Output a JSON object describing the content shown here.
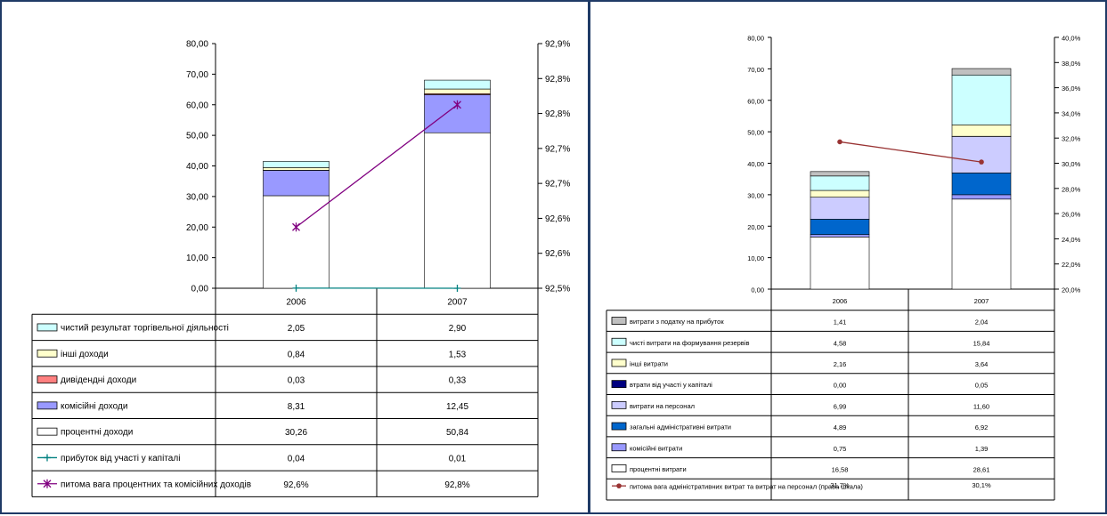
{
  "colors": {
    "border": "#1f3a66"
  },
  "chart_data": [
    {
      "type": "bar",
      "stacked": true,
      "categories": [
        "2006",
        "2007"
      ],
      "ylim": [
        0,
        80
      ],
      "yticks": [
        "0,00",
        "10,00",
        "20,00",
        "30,00",
        "40,00",
        "50,00",
        "60,00",
        "70,00",
        "80,00"
      ],
      "y2ticks": [
        "92,5%",
        "92,6%",
        "92,6%",
        "92,7%",
        "92,7%",
        "92,8%",
        "92,8%",
        "92,9%"
      ],
      "series": [
        {
          "name": "чистий результат торгівельної діяльності",
          "kind": "bar",
          "color": "#ccffff",
          "values": [
            2.05,
            2.9
          ],
          "labels": [
            "2,05",
            "2,90"
          ]
        },
        {
          "name": "інші доходи",
          "kind": "bar",
          "color": "#ffffcc",
          "values": [
            0.84,
            1.53
          ],
          "labels": [
            "0,84",
            "1,53"
          ]
        },
        {
          "name": "дивідендні доходи",
          "kind": "bar",
          "color": "#ff8080",
          "values": [
            0.03,
            0.33
          ],
          "labels": [
            "0,03",
            "0,33"
          ]
        },
        {
          "name": "комісійні доходи",
          "kind": "bar",
          "color": "#9999ff",
          "values": [
            8.31,
            12.45
          ],
          "labels": [
            "8,31",
            "12,45"
          ]
        },
        {
          "name": "процентні доходи",
          "kind": "bar",
          "color": "#ffffff",
          "values": [
            30.26,
            50.84
          ],
          "labels": [
            "30,26",
            "50,84"
          ]
        },
        {
          "name": "прибуток від участі у капіталі",
          "kind": "line-primary",
          "color": "#008080",
          "marker": "plus",
          "values": [
            0.04,
            0.01
          ],
          "labels": [
            "0,04",
            "0,01"
          ]
        },
        {
          "name": "питома вага процентних та комісійних доходів",
          "kind": "line-secondary",
          "color": "#800080",
          "marker": "star",
          "values": [
            92.6,
            92.8
          ],
          "labels": [
            "92,6%",
            "92,8%"
          ]
        }
      ]
    },
    {
      "type": "bar",
      "stacked": true,
      "categories": [
        "2006",
        "2007"
      ],
      "ylim": [
        0,
        80
      ],
      "y2lim": [
        20,
        40
      ],
      "yticks": [
        "0,00",
        "10,00",
        "20,00",
        "30,00",
        "40,00",
        "50,00",
        "60,00",
        "70,00",
        "80,00"
      ],
      "y2ticks": [
        "20,0%",
        "22,0%",
        "24,0%",
        "26,0%",
        "28,0%",
        "30,0%",
        "32,0%",
        "34,0%",
        "36,0%",
        "38,0%",
        "40,0%"
      ],
      "series": [
        {
          "name": "витрати з податку на прибуток",
          "kind": "bar",
          "color": "#c0c0c0",
          "values": [
            1.41,
            2.04
          ],
          "labels": [
            "1,41",
            "2,04"
          ]
        },
        {
          "name": "чисті витрати на формування резервів",
          "kind": "bar",
          "color": "#ccffff",
          "values": [
            4.58,
            15.84
          ],
          "labels": [
            "4,58",
            "15,84"
          ]
        },
        {
          "name": "інші витрати",
          "kind": "bar",
          "color": "#ffffcc",
          "values": [
            2.16,
            3.64
          ],
          "labels": [
            "2,16",
            "3,64"
          ]
        },
        {
          "name": "втрати від участі у капіталі",
          "kind": "bar",
          "color": "#000080",
          "values": [
            0.0,
            0.05
          ],
          "labels": [
            "0,00",
            "0,05"
          ]
        },
        {
          "name": "витрати на персонал",
          "kind": "bar",
          "color": "#ccccff",
          "values": [
            6.99,
            11.6
          ],
          "labels": [
            "6,99",
            "11,60"
          ]
        },
        {
          "name": "загальні адміністративні витрати",
          "kind": "bar",
          "color": "#0066cc",
          "values": [
            4.89,
            6.92
          ],
          "labels": [
            "4,89",
            "6,92"
          ]
        },
        {
          "name": "комісійні витрати",
          "kind": "bar",
          "color": "#9999ff",
          "values": [
            0.75,
            1.39
          ],
          "labels": [
            "0,75",
            "1,39"
          ]
        },
        {
          "name": "процентні витрати",
          "kind": "bar",
          "color": "#ffffff",
          "values": [
            16.58,
            28.61
          ],
          "labels": [
            "16,58",
            "28,61"
          ]
        },
        {
          "name": "питома вага адміністративних витрат та витрат на персонал (права шкала)",
          "kind": "line-secondary",
          "color": "#993333",
          "marker": "dot",
          "values": [
            31.7,
            30.1
          ],
          "labels": [
            "31,7%",
            "30,1%"
          ]
        }
      ]
    }
  ]
}
